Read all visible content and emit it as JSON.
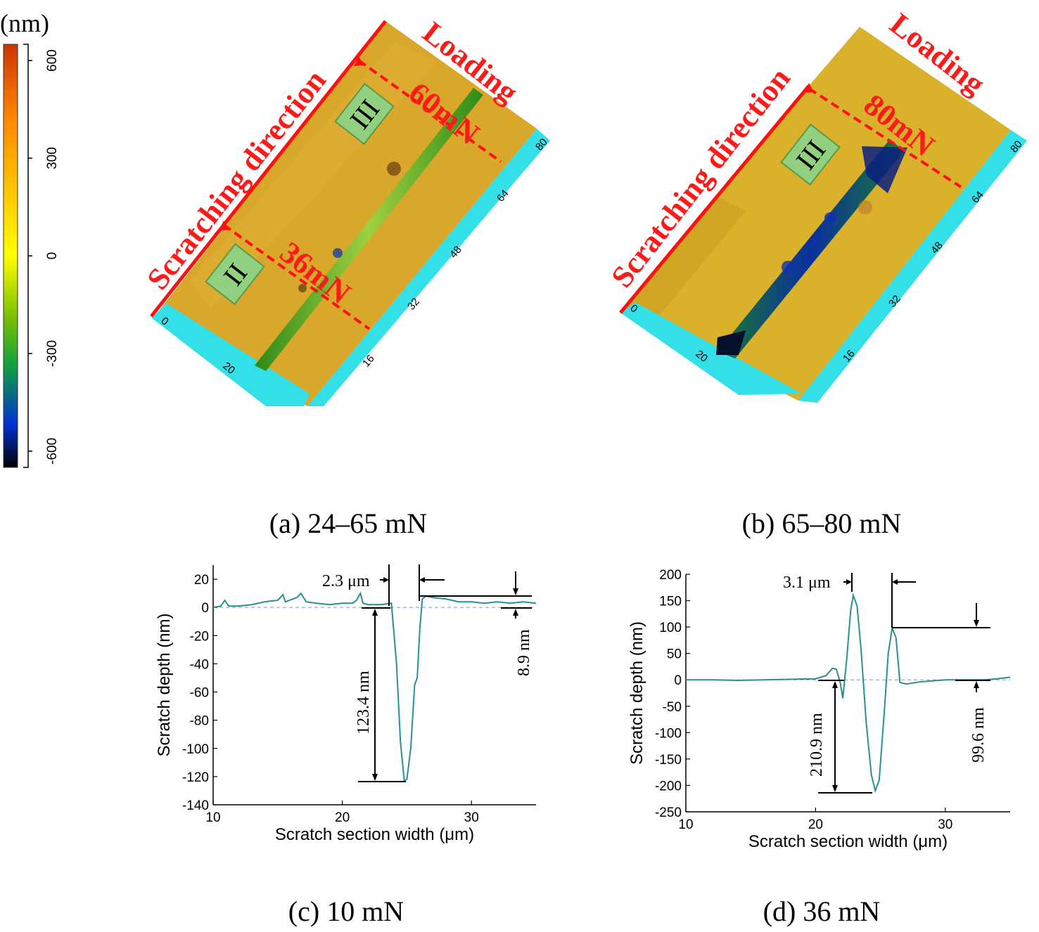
{
  "colorbar": {
    "unit": "(nm)",
    "ticks": [
      "600",
      "300",
      "0",
      "-300",
      "-600"
    ],
    "tick_values": [
      600,
      300,
      0,
      -300,
      -600
    ],
    "range": [
      -650,
      650
    ],
    "colors": [
      "#cc3300",
      "#ff8a00",
      "#ffd200",
      "#ffff00",
      "#7ec000",
      "#10a040",
      "#0030d0",
      "#000000"
    ]
  },
  "panel_a": {
    "caption": "(a) 24–65 mN",
    "direction_label": "Scratching direction",
    "loading_label": "Loading",
    "load_high": "60mN",
    "load_low": "36mN",
    "region_high": "III",
    "region_low": "II",
    "scale_ticks": [
      "80",
      "64",
      "48",
      "32",
      "16",
      "0",
      "20"
    ]
  },
  "panel_b": {
    "caption": "(b) 65–80 mN",
    "direction_label": "Scratching direction",
    "loading_label": "Loading",
    "load_high": "80mN",
    "region_high": "III",
    "scale_ticks": [
      "80",
      "64",
      "48",
      "32",
      "16",
      "0",
      "20"
    ]
  },
  "panel_c": {
    "caption": "(c) 10 mN",
    "width_label": "2.3 μm",
    "depth_label": "123.4 nm",
    "pileup_label": "8.9 nm"
  },
  "panel_d": {
    "caption": "(d) 36 mN",
    "width_label": "3.1 μm",
    "depth_label": "210.9 nm",
    "pileup_label": "99.6 nm"
  },
  "chart_data": [
    {
      "type": "line",
      "title": "(c) 10 mN",
      "xlabel": "Scratch section width (μm)",
      "ylabel": "Scratch depth (nm)",
      "xlim": [
        10,
        35
      ],
      "ylim": [
        -140,
        30
      ],
      "xticks": [
        10,
        20,
        30
      ],
      "yticks": [
        20,
        0,
        -20,
        -40,
        -60,
        -80,
        -100,
        -120,
        -140
      ],
      "series": [
        {
          "name": "profile",
          "x": [
            10,
            10.6,
            10.9,
            11.2,
            12,
            13,
            14,
            15,
            15.4,
            15.6,
            15.9,
            16.5,
            16.8,
            17.2,
            18,
            19,
            20,
            20.8,
            21.1,
            21.4,
            21.6,
            22,
            23,
            23.8,
            24.2,
            24.5,
            24.8,
            25.0,
            25.3,
            25.6,
            25.8,
            26.0,
            26.2,
            26.5,
            27,
            28,
            29,
            30,
            31,
            32,
            33,
            34,
            35
          ],
          "values": [
            0,
            1,
            5,
            1,
            1,
            2,
            4,
            5,
            9,
            4,
            5,
            7,
            10,
            4,
            3,
            2,
            3,
            3,
            5,
            10,
            3,
            2,
            2,
            3,
            -40,
            -95,
            -123,
            -122,
            -100,
            -55,
            -50,
            -15,
            6,
            8,
            7,
            6,
            4,
            4,
            3,
            4,
            3,
            4,
            3
          ]
        }
      ],
      "annotations": [
        "2.3 μm",
        "123.4 nm",
        "8.9 nm"
      ]
    },
    {
      "type": "line",
      "title": "(d) 36 mN",
      "xlabel": "Scratch section width (μm)",
      "ylabel": "Scratch depth (nm)",
      "xlim": [
        10,
        35
      ],
      "ylim": [
        -250,
        200
      ],
      "xticks": [
        10,
        20,
        30
      ],
      "yticks": [
        200,
        150,
        100,
        50,
        0,
        -50,
        -100,
        -150,
        -200,
        -250
      ],
      "series": [
        {
          "name": "profile",
          "x": [
            10,
            12,
            14,
            16,
            18,
            20,
            20.8,
            21.3,
            21.6,
            21.9,
            22.1,
            22.4,
            22.7,
            22.9,
            23.2,
            23.5,
            23.9,
            24.3,
            24.6,
            24.9,
            25.3,
            25.6,
            25.9,
            26.2,
            26.5,
            27,
            28,
            29,
            30,
            31,
            32,
            33,
            34,
            35
          ],
          "values": [
            0,
            0,
            -1,
            0,
            1,
            2,
            8,
            22,
            20,
            -5,
            -35,
            40,
            130,
            160,
            140,
            60,
            -80,
            -180,
            -210,
            -190,
            -60,
            50,
            98,
            80,
            -5,
            -8,
            -4,
            -2,
            0,
            0,
            0,
            0,
            2,
            5
          ]
        }
      ],
      "annotations": [
        "3.1 μm",
        "210.9 nm",
        "99.6 nm"
      ]
    }
  ]
}
